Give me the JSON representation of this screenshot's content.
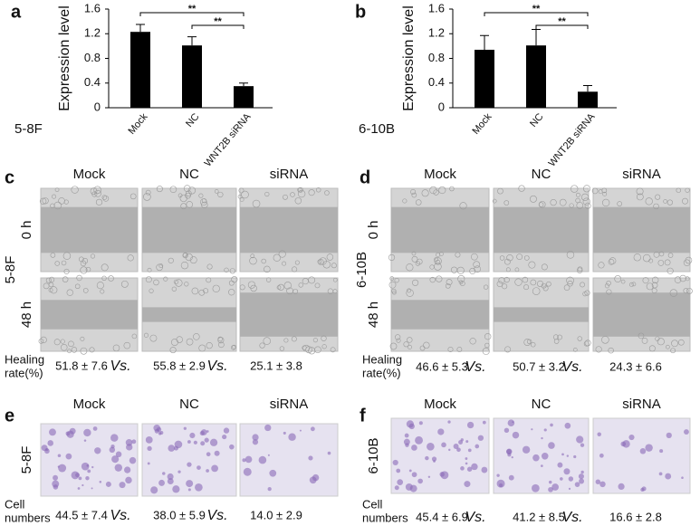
{
  "chart_data": [
    {
      "type": "bar",
      "panel": "a",
      "cell_line": "5-8F",
      "y_label": "Expression level",
      "categories": [
        "Mock",
        "NC",
        "WNT2B siRNA"
      ],
      "values": [
        1.23,
        1.01,
        0.35
      ],
      "errors": [
        0.12,
        0.14,
        0.05
      ],
      "color": "#000000",
      "ylim": [
        0,
        1.6
      ],
      "yticks": [
        0,
        0.4,
        0.8,
        1.2,
        1.6
      ],
      "significance": [
        "**",
        "**"
      ]
    },
    {
      "type": "bar",
      "panel": "b",
      "cell_line": "6-10B",
      "y_label": "Expression level",
      "categories": [
        "Mock",
        "NC",
        "WNT2B siRNA"
      ],
      "values": [
        0.94,
        1.01,
        0.26
      ],
      "errors": [
        0.23,
        0.26,
        0.1
      ],
      "color": "#000000",
      "ylim": [
        0,
        1.6
      ],
      "yticks": [
        0,
        0.4,
        0.8,
        1.2,
        1.6
      ],
      "significance": [
        "**",
        "**"
      ]
    }
  ],
  "panels": [
    {
      "letter": "c",
      "columns": [
        "Mock",
        "NC",
        "siRNA"
      ],
      "rows": [
        "0 h",
        "48 h"
      ],
      "cell_line": "5-8F",
      "measure": [
        "Healing",
        "rate(%)"
      ],
      "results": [
        "51.8 ± 7.6",
        "Vs.",
        "55.8 ± 2.9",
        "Vs.",
        "25.1 ± 3.8"
      ]
    },
    {
      "letter": "d",
      "columns": [
        "Mock",
        "NC",
        "siRNA"
      ],
      "rows": [
        "0 h",
        "48 h"
      ],
      "cell_line": "6-10B",
      "measure": [
        "Healing",
        "rate(%)"
      ],
      "results": [
        "46.6 ± 5.3",
        "Vs.",
        "50.7 ± 3.2",
        "Vs.",
        "24.3 ± 6.6"
      ]
    },
    {
      "letter": "e",
      "columns": [
        "Mock",
        "NC",
        "siRNA"
      ],
      "cell_line": "5-8F",
      "measure": [
        "Cell",
        "numbers"
      ],
      "results": [
        "44.5 ± 7.4",
        "Vs.",
        "38.0 ± 5.9",
        "Vs.",
        "14.0 ± 2.9"
      ]
    },
    {
      "letter": "f",
      "columns": [
        "Mock",
        "NC",
        "siRNA"
      ],
      "cell_line": "6-10B",
      "measure": [
        "Cell",
        "numbers"
      ],
      "results": [
        "45.4 ± 6.9",
        "Vs.",
        "41.2 ± 8.5",
        "Vs.",
        "16.6 ± 2.8"
      ]
    }
  ]
}
